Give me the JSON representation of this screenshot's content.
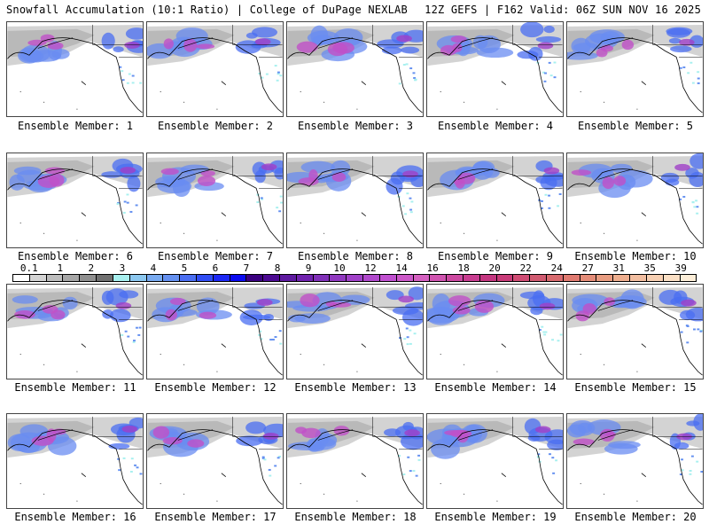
{
  "header": {
    "title_left": "Snowfall Accumulation (10:1 Ratio) | College of DuPage NEXLAB",
    "title_right": "12Z GEFS | F162 Valid: 06Z SUN NOV 16 2025"
  },
  "panels": [
    {
      "label": "Ensemble Member: 1"
    },
    {
      "label": "Ensemble Member: 2"
    },
    {
      "label": "Ensemble Member: 3"
    },
    {
      "label": "Ensemble Member: 4"
    },
    {
      "label": "Ensemble Member: 5"
    },
    {
      "label": "Ensemble Member: 6"
    },
    {
      "label": "Ensemble Member: 7"
    },
    {
      "label": "Ensemble Member: 8"
    },
    {
      "label": "Ensemble Member: 9"
    },
    {
      "label": "Ensemble Member: 10"
    },
    {
      "label": "Ensemble Member: 11"
    },
    {
      "label": "Ensemble Member: 12"
    },
    {
      "label": "Ensemble Member: 13"
    },
    {
      "label": "Ensemble Member: 14"
    },
    {
      "label": "Ensemble Member: 15"
    },
    {
      "label": "Ensemble Member: 16"
    },
    {
      "label": "Ensemble Member: 17"
    },
    {
      "label": "Ensemble Member: 18"
    },
    {
      "label": "Ensemble Member: 19"
    },
    {
      "label": "Ensemble Member: 20"
    }
  ],
  "colorbar": {
    "labels": [
      "0.1",
      "1",
      "2",
      "3",
      "4",
      "5",
      "6",
      "7",
      "8",
      "9",
      "10",
      "12",
      "14",
      "16",
      "18",
      "20",
      "22",
      "24",
      "27",
      "31",
      "35",
      "39"
    ],
    "colors": [
      "#ffffff",
      "#d4d4d4",
      "#bdbdbd",
      "#a6a6a6",
      "#8f8f8f",
      "#707070",
      "#a8f0ef",
      "#8cc8f0",
      "#78aaf0",
      "#6490f0",
      "#4a6ef2",
      "#2f4cf4",
      "#1c28f5",
      "#0a0af0",
      "#3a0080",
      "#4c0a92",
      "#5e1aa0",
      "#7022ae",
      "#8030b8",
      "#9038c0",
      "#a040c8",
      "#b048cc",
      "#c050d0",
      "#cc58c8",
      "#d460c0",
      "#d054b0",
      "#cc48a0",
      "#c83c90",
      "#c43680",
      "#c83a78",
      "#d04c74",
      "#d05a70",
      "#d86a6e",
      "#e07a70",
      "#e48c78",
      "#e89c80",
      "#eeae8e",
      "#f2bea0",
      "#f6cfb2",
      "#fadfc4",
      "#fdeed8"
    ]
  }
}
